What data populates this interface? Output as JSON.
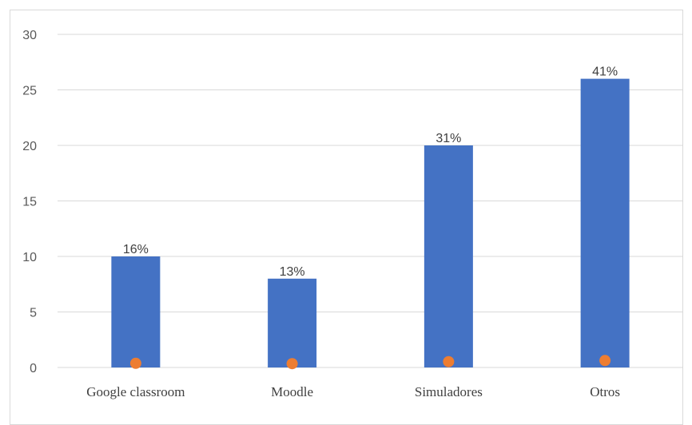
{
  "chart_data": {
    "type": "bar",
    "categories": [
      "Google classroom",
      "Moodle",
      "Simuladores",
      "Otros"
    ],
    "series": [
      {
        "values": [
          10,
          8,
          20,
          26
        ],
        "color": "#4472c4",
        "data_labels": [
          "16%",
          "13%",
          "31%",
          "41%"
        ]
      },
      {
        "values": [
          0.16,
          0.13,
          0.31,
          0.41
        ],
        "color": "#ed7d31",
        "marker": "circle"
      }
    ],
    "y_ticks": [
      "0",
      "5",
      "10",
      "15",
      "20",
      "25",
      "30"
    ],
    "ylim": [
      0,
      30
    ],
    "grid": true,
    "legend": "none"
  }
}
